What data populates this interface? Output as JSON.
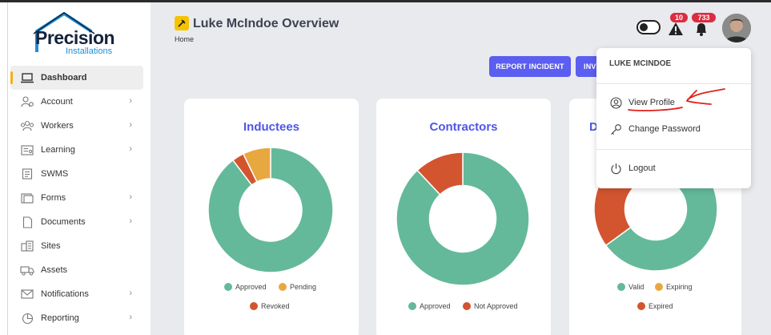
{
  "logo": {
    "word": "Precision",
    "sub": "Installations"
  },
  "page": {
    "title": "Luke McIndoe Overview",
    "breadcrumb": "Home"
  },
  "buttons": {
    "report_incident": "REPORT INCIDENT",
    "second": "INV"
  },
  "header": {
    "alert_count": "10",
    "notification_count": "733"
  },
  "sidebar": {
    "items": [
      {
        "label": "Dashboard",
        "icon": "laptop-icon"
      },
      {
        "label": "Account",
        "icon": "user-settings-icon"
      },
      {
        "label": "Workers",
        "icon": "team-icon"
      },
      {
        "label": "Learning",
        "icon": "certificate-icon"
      },
      {
        "label": "SWMS",
        "icon": "document-icon"
      },
      {
        "label": "Forms",
        "icon": "folder-icon"
      },
      {
        "label": "Documents",
        "icon": "file-icon"
      },
      {
        "label": "Sites",
        "icon": "building-icon"
      },
      {
        "label": "Assets",
        "icon": "truck-icon"
      },
      {
        "label": "Notifications",
        "icon": "envelope-icon"
      },
      {
        "label": "Reporting",
        "icon": "pie-chart-icon"
      }
    ]
  },
  "dropdown": {
    "user_name": "LUKE MCINDOE",
    "view_profile": "View Profile",
    "change_password": "Change Password",
    "logout": "Logout"
  },
  "colors": {
    "accent": "#5b5ef0",
    "green": "#64b99a",
    "orange": "#e8a840",
    "red": "#d2552f",
    "title": "#4e56e6"
  },
  "chart_data": [
    {
      "type": "pie",
      "title": "Inductees",
      "hole": 0.5,
      "categories": [
        "Approved",
        "Revoked",
        "Pending"
      ],
      "values": [
        87,
        3,
        7
      ],
      "colors": [
        "#64b99a",
        "#d2552f",
        "#e8a840"
      ],
      "legend": [
        {
          "label": "Approved",
          "color": "#64b99a"
        },
        {
          "label": "Pending",
          "color": "#e8a840"
        },
        {
          "label": "Revoked",
          "color": "#d2552f"
        }
      ]
    },
    {
      "type": "pie",
      "title": "Contractors",
      "hole": 0.5,
      "categories": [
        "Approved",
        "Not Approved"
      ],
      "values": [
        88,
        12
      ],
      "colors": [
        "#64b99a",
        "#d2552f"
      ],
      "legend": [
        {
          "label": "Approved",
          "color": "#64b99a"
        },
        {
          "label": "Not Approved",
          "color": "#d2552f"
        }
      ]
    },
    {
      "type": "pie",
      "title": "D",
      "hole": 0.5,
      "categories": [
        "Valid",
        "Expired",
        "Expiring"
      ],
      "values": [
        65,
        35,
        0
      ],
      "colors": [
        "#64b99a",
        "#d2552f",
        "#e8a840"
      ],
      "legend": [
        {
          "label": "Valid",
          "color": "#64b99a"
        },
        {
          "label": "Expiring",
          "color": "#e8a840"
        },
        {
          "label": "Expired",
          "color": "#d2552f"
        }
      ]
    }
  ]
}
